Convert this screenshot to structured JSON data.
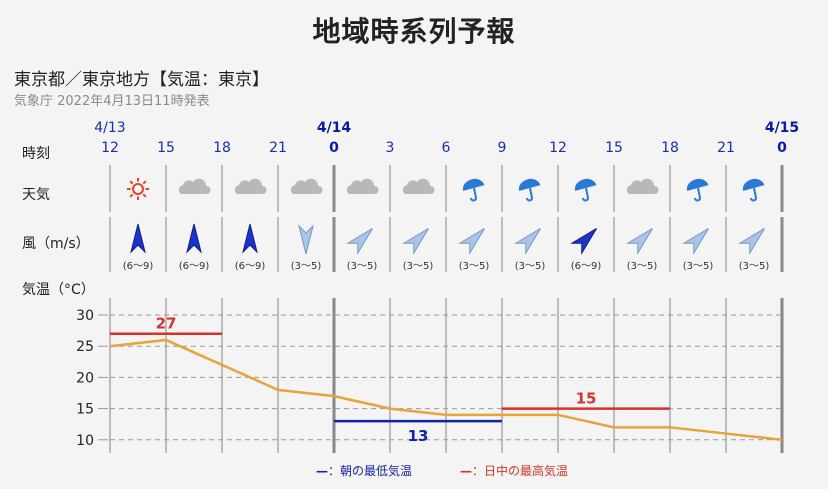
{
  "header": {
    "title": "地域時系列予報",
    "region": "東京都／東京地方【気温：東京】",
    "issued": "気象庁 2022年4月13日11時発表"
  },
  "row_labels": {
    "time": "時刻",
    "weather": "天気",
    "wind": "風（m/s）",
    "temp": "気温（°C）"
  },
  "dates": [
    {
      "label": "4/13",
      "col": 0,
      "bold": false
    },
    {
      "label": "4/14",
      "col": 4,
      "bold": true
    },
    {
      "label": "4/15",
      "col": 12,
      "bold": true
    }
  ],
  "hours": [
    {
      "label": "12",
      "bold": false
    },
    {
      "label": "15",
      "bold": false
    },
    {
      "label": "18",
      "bold": false
    },
    {
      "label": "21",
      "bold": false
    },
    {
      "label": "0",
      "bold": true
    },
    {
      "label": "3",
      "bold": false
    },
    {
      "label": "6",
      "bold": false
    },
    {
      "label": "9",
      "bold": false
    },
    {
      "label": "12",
      "bold": false
    },
    {
      "label": "15",
      "bold": false
    },
    {
      "label": "18",
      "bold": false
    },
    {
      "label": "21",
      "bold": false
    },
    {
      "label": "0",
      "bold": true
    }
  ],
  "weather": [
    "sun-icon",
    "cloud-icon",
    "cloud-icon",
    "cloud-icon",
    "cloud-icon",
    "cloud-icon",
    "umbrella-icon",
    "umbrella-icon",
    "umbrella-icon",
    "cloud-icon",
    "umbrella-icon",
    "umbrella-icon"
  ],
  "wind": [
    {
      "dir": "N",
      "speed": "(6〜9)",
      "strong": true
    },
    {
      "dir": "N",
      "speed": "(6〜9)",
      "strong": true
    },
    {
      "dir": "N",
      "speed": "(6〜9)",
      "strong": true
    },
    {
      "dir": "S",
      "speed": "(3〜5)",
      "strong": false
    },
    {
      "dir": "NE",
      "speed": "(3〜5)",
      "strong": false
    },
    {
      "dir": "NE",
      "speed": "(3〜5)",
      "strong": false
    },
    {
      "dir": "NE",
      "speed": "(3〜5)",
      "strong": false
    },
    {
      "dir": "NE",
      "speed": "(3〜5)",
      "strong": false
    },
    {
      "dir": "NE",
      "speed": "(6〜9)",
      "strong": true
    },
    {
      "dir": "NE",
      "speed": "(3〜5)",
      "strong": false
    },
    {
      "dir": "NE",
      "speed": "(3〜5)",
      "strong": false
    },
    {
      "dir": "NE",
      "speed": "(3〜5)",
      "strong": false
    }
  ],
  "chart_data": {
    "type": "line",
    "x": [
      "4/13 12",
      "15",
      "18",
      "21",
      "4/14 0",
      "3",
      "6",
      "9",
      "12",
      "15",
      "18",
      "21",
      "4/15 0"
    ],
    "series": [
      {
        "values": [
          25,
          26,
          22,
          18,
          17,
          15,
          14,
          14,
          14,
          12,
          12,
          11,
          10
        ]
      }
    ],
    "y_ticks": [
      30,
      25,
      20,
      15,
      10
    ],
    "ylim": [
      8,
      32
    ],
    "max_lines": [
      {
        "value": 27,
        "label": "27",
        "from_col": 0,
        "to_col": 2
      },
      {
        "value": 15,
        "label": "15",
        "from_col": 7,
        "to_col": 10
      }
    ],
    "min_lines": [
      {
        "value": 13,
        "label": "13",
        "from_col": 4,
        "to_col": 7
      }
    ],
    "colors": {
      "line": "#e8a43a",
      "max": "#d8322a",
      "min": "#1422a8"
    }
  },
  "legend": {
    "min_dash": "—",
    "min_label": "：朝の最低気温",
    "max_dash": "—",
    "max_label": "：日中の最高気温"
  }
}
